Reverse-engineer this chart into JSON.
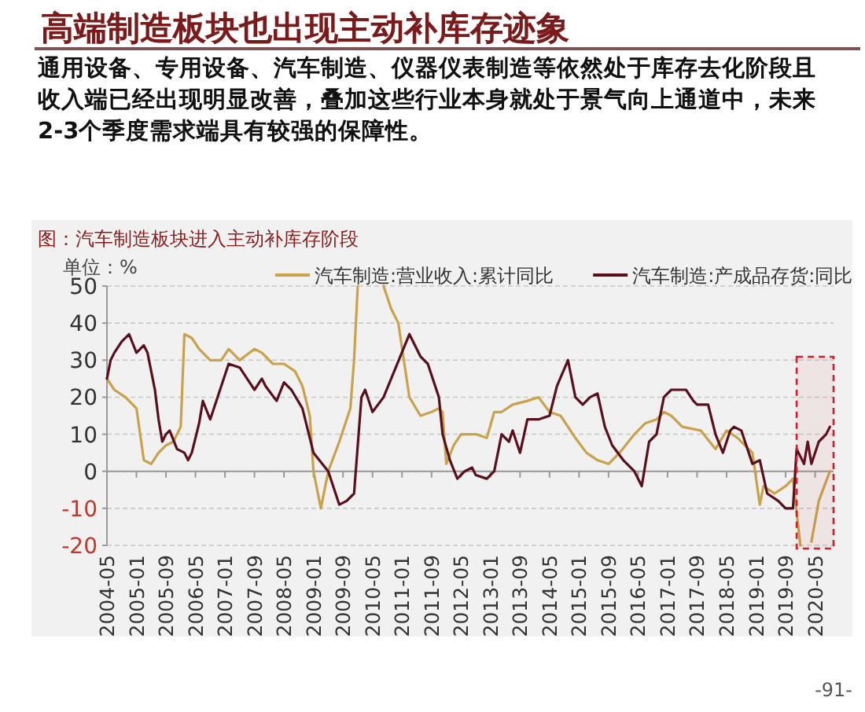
{
  "chart_data": {
    "type": "line",
    "title": "高端制造板块也出现主动补库存迹象",
    "subtitle": "通用设备、专用设备、汽车制造、仪器仪表制造等依然处于库存去化阶段且收入端已经出现明显改善，叠加这些行业本身就处于景气向上通道中，未来2-3个季度需求端具有较强的保障性。",
    "annotations": [
      "图：汽车制造板块进入主动补库存阶段",
      "-91-"
    ],
    "ylabel": "单位：%",
    "xlim": [
      "2004-05",
      "2020-10"
    ],
    "xticks": [
      "2004-05",
      "2005-01",
      "2005-09",
      "2006-05",
      "2007-01",
      "2007-09",
      "2008-05",
      "2009-01",
      "2009-09",
      "2010-05",
      "2011-01",
      "2011-09",
      "2012-05",
      "2013-01",
      "2013-09",
      "2014-05",
      "2015-01",
      "2015-09",
      "2016-05",
      "2017-01",
      "2017-09",
      "2018-05",
      "2019-01",
      "2019-09",
      "2020-05"
    ],
    "ylim": [
      -20,
      50
    ],
    "yticks": [
      -20,
      -10,
      0,
      10,
      20,
      30,
      40,
      50
    ],
    "grid": "y",
    "legend": "top",
    "bands": [
      {
        "axis": "x",
        "from": "2019-12",
        "to": "2020-10",
        "color": "#d0202a"
      }
    ],
    "series": [
      {
        "name": "汽车制造:营业收入:累计同比",
        "color": "#c9a24b",
        "x": [
          "2004-05",
          "2004-07",
          "2004-10",
          "2005-01",
          "2005-02",
          "2005-03",
          "2005-05",
          "2005-07",
          "2005-09",
          "2005-11",
          "2006-01",
          "2006-02",
          "2006-04",
          "2006-06",
          "2006-09",
          "2006-12",
          "2007-02",
          "2007-05",
          "2007-09",
          "2007-11",
          "2008-02",
          "2008-05",
          "2008-08",
          "2008-10",
          "2008-12",
          "2009-01",
          "2009-03",
          "2009-05",
          "2009-08",
          "2009-11",
          "2009-12",
          "2010-01",
          "2010-02",
          "2010-08",
          "2010-10",
          "2010-12",
          "2011-03",
          "2011-06",
          "2011-09",
          "2011-11",
          "2011-12",
          "2012-01",
          "2012-03",
          "2012-05",
          "2012-09",
          "2012-12",
          "2013-02",
          "2013-04",
          "2013-07",
          "2013-11",
          "2014-02",
          "2014-05",
          "2014-08",
          "2014-12",
          "2015-03",
          "2015-06",
          "2015-09",
          "2015-12",
          "2016-04",
          "2016-07",
          "2016-10",
          "2016-12",
          "2017-02",
          "2017-05",
          "2017-10",
          "2018-02",
          "2018-05",
          "2018-08",
          "2018-12",
          "2019-02",
          "2019-03",
          "2019-06",
          "2019-09",
          "2019-11",
          "2020-01",
          "2020-02",
          "2020-04",
          "2020-06",
          "2020-09"
        ],
        "values": [
          25,
          22,
          20,
          17,
          10,
          3,
          2,
          5,
          7,
          8,
          12,
          37,
          36,
          33,
          30,
          30,
          33,
          30,
          33,
          32,
          29,
          29,
          27,
          23,
          15,
          0,
          -10,
          0,
          8,
          17,
          30,
          50,
          null,
          50,
          44,
          40,
          20,
          15,
          16,
          17,
          16,
          2,
          7,
          10,
          10,
          9,
          16,
          16,
          18,
          19,
          20,
          16,
          15,
          9,
          5,
          3,
          2,
          5,
          10,
          13,
          14,
          16,
          15,
          12,
          11,
          6,
          11,
          9,
          5,
          -9,
          -4,
          -6,
          -4,
          -2,
          -20,
          null,
          -19,
          -8,
          0
        ]
      },
      {
        "name": "汽车制造:产成品存货:同比",
        "color": "#5a0f1e",
        "x": [
          "2004-05",
          "2004-06",
          "2004-07",
          "2004-09",
          "2004-11",
          "2005-01",
          "2005-03",
          "2005-04",
          "2005-06",
          "2005-07",
          "2005-08",
          "2005-09",
          "2005-10",
          "2005-12",
          "2006-02",
          "2006-03",
          "2006-04",
          "2006-05",
          "2006-06",
          "2006-07",
          "2006-09",
          "2006-12",
          "2007-02",
          "2007-05",
          "2007-07",
          "2007-09",
          "2007-11",
          "2007-12",
          "2008-03",
          "2008-05",
          "2008-07",
          "2008-10",
          "2009-01",
          "2009-05",
          "2009-08",
          "2009-10",
          "2009-12",
          "2010-02",
          "2010-03",
          "2010-05",
          "2010-08",
          "2011-03",
          "2011-06",
          "2011-08",
          "2011-09",
          "2011-11",
          "2011-12",
          "2012-02",
          "2012-04",
          "2012-06",
          "2012-08",
          "2012-09",
          "2012-12",
          "2013-02",
          "2013-04",
          "2013-06",
          "2013-07",
          "2013-09",
          "2013-11",
          "2014-02",
          "2014-05",
          "2014-07",
          "2014-10",
          "2014-12",
          "2015-02",
          "2015-04",
          "2015-06",
          "2015-08",
          "2015-10",
          "2016-01",
          "2016-04",
          "2016-06",
          "2016-08",
          "2016-10",
          "2016-12",
          "2017-02",
          "2017-06",
          "2017-08",
          "2017-09",
          "2017-12",
          "2018-02",
          "2018-04",
          "2018-06",
          "2018-07",
          "2018-09",
          "2018-10",
          "2018-12",
          "2019-02",
          "2019-04",
          "2019-07",
          "2019-09",
          "2019-11",
          "2019-12",
          "2020-02",
          "2020-03",
          "2020-04",
          "2020-06",
          "2020-08",
          "2020-09"
        ],
        "values": [
          25,
          30,
          32,
          35,
          37,
          32,
          34,
          32,
          22,
          14,
          8,
          10,
          11,
          6,
          5,
          3,
          5,
          9,
          13,
          19,
          14,
          23,
          29,
          28,
          25,
          22,
          25,
          23,
          19,
          24,
          22,
          17,
          5,
          0,
          -9,
          -8,
          -6,
          20,
          22,
          16,
          20,
          37,
          31,
          29,
          26,
          20,
          10,
          3,
          -2,
          0,
          1,
          -1,
          -2,
          0,
          10,
          8,
          11,
          5,
          14,
          14,
          15,
          23,
          30,
          20,
          18,
          20,
          21,
          12,
          7,
          3,
          0,
          -4,
          8,
          10,
          20,
          22,
          22,
          19,
          18,
          18,
          10,
          5,
          11,
          12,
          11,
          8,
          2,
          3,
          -6,
          -8,
          -10,
          -10,
          6,
          2,
          8,
          2,
          8,
          10,
          12
        ]
      }
    ]
  }
}
